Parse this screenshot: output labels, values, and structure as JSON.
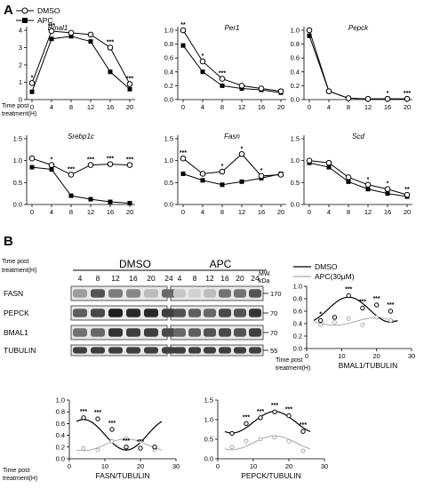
{
  "panel_a": {
    "letter": "A",
    "legend": {
      "dmso": "DMSO",
      "apc": "APC"
    },
    "x_axis_title": "Time post\ntreatment(H)",
    "x_ticks": [
      "0",
      "4",
      "8",
      "12",
      "16",
      "20"
    ],
    "charts": [
      {
        "gene": "Bmal1",
        "yticks": [
          "0",
          "1",
          "2",
          "3",
          "4"
        ],
        "ymax": 4,
        "dmso": [
          0.95,
          3.95,
          3.85,
          3.75,
          3.0,
          0.9
        ],
        "apc": [
          0.45,
          3.5,
          3.65,
          3.35,
          1.6,
          0.6
        ],
        "stars": [
          {
            "i": 0,
            "t": "*"
          },
          {
            "i": 1,
            "t": "***"
          },
          {
            "i": 4,
            "t": "***"
          },
          {
            "i": 5,
            "t": "***"
          }
        ]
      },
      {
        "gene": "Per1",
        "yticks": [
          "0.0",
          "0.2",
          "0.4",
          "0.6",
          "0.8",
          "1.0"
        ],
        "ymax": 1.0,
        "dmso": [
          1.0,
          0.55,
          0.3,
          0.2,
          0.16,
          0.12
        ],
        "apc": [
          0.78,
          0.4,
          0.2,
          0.16,
          0.14,
          0.1
        ],
        "stars": [
          {
            "i": 0,
            "t": "**"
          },
          {
            "i": 1,
            "t": "*"
          },
          {
            "i": 2,
            "t": "***"
          }
        ]
      },
      {
        "gene": "Pepck",
        "yticks": [
          "0.0",
          "0.2",
          "0.4",
          "0.6",
          "0.8",
          "1.0"
        ],
        "ymax": 1.0,
        "dmso": [
          1.0,
          0.12,
          0.02,
          0.01,
          0.01,
          0.01
        ],
        "apc": [
          0.92,
          0.12,
          0.02,
          0.01,
          0.01,
          0.01
        ],
        "stars": [
          {
            "i": 4,
            "t": "*"
          },
          {
            "i": 5,
            "t": "***"
          }
        ]
      },
      {
        "gene": "Srebp1c",
        "yticks": [
          "0.0",
          "0.5",
          "1.0",
          "1.5"
        ],
        "ymax": 1.5,
        "dmso": [
          1.05,
          0.9,
          0.68,
          0.9,
          0.92,
          0.9
        ],
        "apc": [
          0.85,
          0.8,
          0.2,
          0.12,
          0.06,
          0.03
        ],
        "stars": [
          {
            "i": 1,
            "t": "*"
          },
          {
            "i": 2,
            "t": "***"
          },
          {
            "i": 3,
            "t": "***"
          },
          {
            "i": 4,
            "t": "***"
          },
          {
            "i": 5,
            "t": "***"
          }
        ]
      },
      {
        "gene": "Fasn",
        "yticks": [
          "0.0",
          "0.5",
          "1.0",
          "1.5"
        ],
        "ymax": 1.5,
        "dmso": [
          1.05,
          0.7,
          0.75,
          1.15,
          0.65,
          0.68
        ],
        "apc": [
          0.7,
          0.55,
          0.45,
          0.52,
          0.6,
          0.7
        ],
        "stars": [
          {
            "i": 0,
            "t": "***"
          },
          {
            "i": 2,
            "t": "*"
          },
          {
            "i": 3,
            "t": "*"
          },
          {
            "i": 4,
            "t": "*"
          }
        ]
      },
      {
        "gene": "Scd",
        "yticks": [
          "0.0",
          "0.5",
          "1.0",
          "1.5"
        ],
        "ymax": 1.5,
        "dmso": [
          1.0,
          0.95,
          0.62,
          0.45,
          0.35,
          0.22
        ],
        "apc": [
          0.95,
          0.85,
          0.52,
          0.35,
          0.25,
          0.18
        ],
        "stars": [
          {
            "i": 3,
            "t": "*"
          },
          {
            "i": 4,
            "t": "*"
          },
          {
            "i": 5,
            "t": "**"
          }
        ]
      }
    ]
  },
  "panel_b": {
    "letter": "B",
    "time_label": "Time post\ntreatment(H)",
    "group_dmso": "DMSO",
    "group_apc": "APC",
    "mw_label": "MW.\nkDa",
    "lane_times": [
      "4",
      "8",
      "12",
      "16",
      "20",
      "24",
      "4",
      "8",
      "12",
      "16",
      "20",
      "24"
    ],
    "bands": [
      {
        "name": "FASN",
        "mw": "170",
        "dmso": [
          0.35,
          0.7,
          0.5,
          0.45,
          0.2,
          0.6
        ],
        "apc": [
          0.15,
          0.1,
          0.2,
          0.55,
          0.55,
          0.7
        ]
      },
      {
        "name": "PEPCK",
        "mw": "70",
        "dmso": [
          0.65,
          0.75,
          0.95,
          0.9,
          0.9,
          0.8
        ],
        "apc": [
          0.7,
          0.65,
          0.6,
          0.75,
          0.7,
          0.85
        ]
      },
      {
        "name": "BMAL1",
        "mw": "70",
        "dmso": [
          0.55,
          0.6,
          0.85,
          0.8,
          0.8,
          0.75
        ],
        "apc": [
          0.6,
          0.65,
          0.7,
          0.75,
          0.7,
          0.8
        ]
      },
      {
        "name": "TUBULIN",
        "mw": "55",
        "dmso": [
          0.8,
          0.8,
          0.8,
          0.8,
          0.8,
          0.8
        ],
        "apc": [
          0.8,
          0.8,
          0.8,
          0.8,
          0.8,
          0.8
        ]
      }
    ],
    "cosinor_legend": {
      "dmso": "DMSO",
      "apc": "APC(30μM)"
    },
    "charts": [
      {
        "title": "BMAL1/TUBULIN",
        "yticks": [
          "0.0",
          "0.2",
          "0.4",
          "0.6",
          "0.8",
          "1.0"
        ],
        "ymax": 1.0,
        "xticks": [
          "0",
          "10",
          "20",
          "30"
        ],
        "xmax": 30,
        "x_axis_title": "Time post\ntreatment(H)",
        "dmso_x": [
          4,
          8,
          12,
          16,
          20,
          24
        ],
        "dmso": [
          0.45,
          0.5,
          0.85,
          0.65,
          0.7,
          0.6
        ],
        "apc_x": [
          4,
          8,
          12,
          16,
          20,
          24
        ],
        "apc": [
          0.38,
          0.42,
          0.48,
          0.38,
          0.5,
          0.45
        ],
        "stars": [
          {
            "i": 0,
            "t": "*"
          },
          {
            "i": 2,
            "t": "***"
          },
          {
            "i": 3,
            "t": "***"
          },
          {
            "i": 4,
            "t": "***"
          },
          {
            "i": 5,
            "t": "***"
          }
        ]
      },
      {
        "title": "FASN/TUBULIN",
        "yticks": [
          "0.0",
          "0.2",
          "0.4",
          "0.6",
          "0.8",
          "1.0"
        ],
        "ymax": 1.0,
        "xticks": [
          "0",
          "10",
          "20",
          "30"
        ],
        "xmax": 30,
        "x_axis_title": "Time post\ntreatment(H)",
        "dmso_x": [
          4,
          8,
          12,
          16,
          20,
          24
        ],
        "dmso": [
          0.7,
          0.68,
          0.5,
          0.2,
          0.18,
          0.2
        ],
        "apc_x": [
          4,
          8,
          12,
          16,
          20,
          24
        ],
        "apc": [
          0.18,
          0.15,
          0.3,
          0.35,
          0.3,
          0.15
        ],
        "stars": [
          {
            "i": 0,
            "t": "***"
          },
          {
            "i": 1,
            "t": "***"
          },
          {
            "i": 2,
            "t": "***"
          },
          {
            "i": 3,
            "t": "***"
          },
          {
            "i": 4,
            "t": "***"
          }
        ]
      },
      {
        "title": "PEPCK/TUBULIN",
        "yticks": [
          "0.0",
          "0.5",
          "1.0",
          "1.5"
        ],
        "ymax": 1.5,
        "xticks": [
          "0",
          "10",
          "20",
          "30"
        ],
        "xmax": 30,
        "x_axis_title": "",
        "dmso_x": [
          4,
          8,
          12,
          16,
          20,
          24
        ],
        "dmso": [
          0.65,
          0.9,
          1.05,
          1.2,
          1.1,
          0.7
        ],
        "apc_x": [
          4,
          8,
          12,
          16,
          20,
          24
        ],
        "apc": [
          0.3,
          0.45,
          0.5,
          0.55,
          0.45,
          0.2
        ],
        "stars": [
          {
            "i": 1,
            "t": "***"
          },
          {
            "i": 2,
            "t": "***"
          },
          {
            "i": 3,
            "t": "***"
          },
          {
            "i": 4,
            "t": "***"
          },
          {
            "i": 5,
            "t": "***"
          }
        ]
      }
    ]
  }
}
